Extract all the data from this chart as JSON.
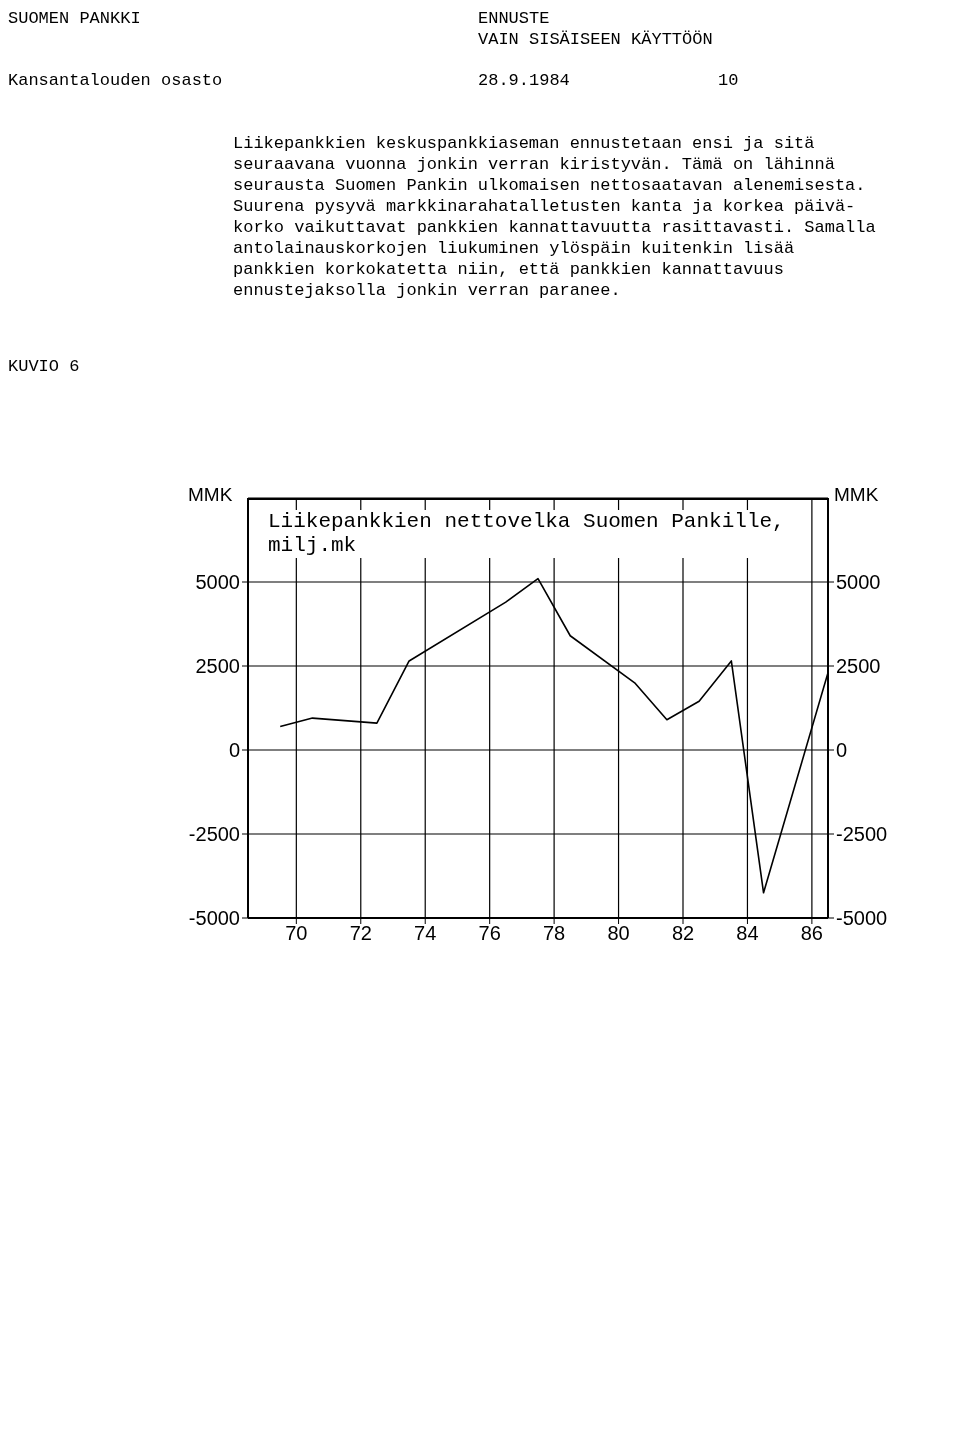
{
  "chart_data": {
    "type": "line",
    "title": "Liikepankkien nettovelka Suomen Pankille,\nmilj.mk",
    "ylabel": "MMK",
    "y2label": "MMK",
    "annotations": [
      "SUOMEN PANKKI",
      "ENNUSTE\nVAIN SISÄISEEN KÄYTTÖÖN",
      "Kansantalouden osasto",
      "28.9.1984",
      "10",
      "Liikepankkien keskuspankkiaseman ennustetaan ensi ja sitä\nseuraavana vuonna jonkin verran kiristyvän. Tämä on lähinnä\nseurausta Suomen Pankin ulkomaisen nettosaatavan alenemisesta.\nSuurena pysyvä markkinarahatalletusten kanta ja korkea päivä-\nkorko vaikuttavat pankkien kannattavuutta rasittavasti. Samalla\nantolainauskorkojen liukuminen ylöspäin kuitenkin lisää\npankkien korkokatetta niin, että pankkien kannattavuus\nennustejaksolla jonkin verran paranee.",
      "KUVIO 6"
    ],
    "x": [
      69.5,
      70.5,
      72.5,
      73.5,
      76.5,
      77.5,
      78.5,
      80.5,
      81.5,
      82.5,
      83.5,
      84.5,
      86.5
    ],
    "series": [
      {
        "color": "#000000",
        "values": [
          700,
          950,
          800,
          2650,
          4400,
          5100,
          3400,
          2000,
          900,
          1450,
          2650,
          -4250,
          2300
        ]
      }
    ],
    "xlim": [
      68.5,
      86.5
    ],
    "xticks": [
      70,
      72,
      74,
      76,
      78,
      80,
      82,
      84,
      86
    ],
    "ylim": [
      -5000,
      7500
    ],
    "yticks": [
      -5000,
      -2500,
      0,
      2500,
      5000
    ],
    "y2lim": [
      -5000,
      7500
    ],
    "y2ticks": [
      -5000,
      -2500,
      0,
      2500,
      5000
    ],
    "grid": true,
    "marker": "none",
    "line_style": "solid"
  }
}
